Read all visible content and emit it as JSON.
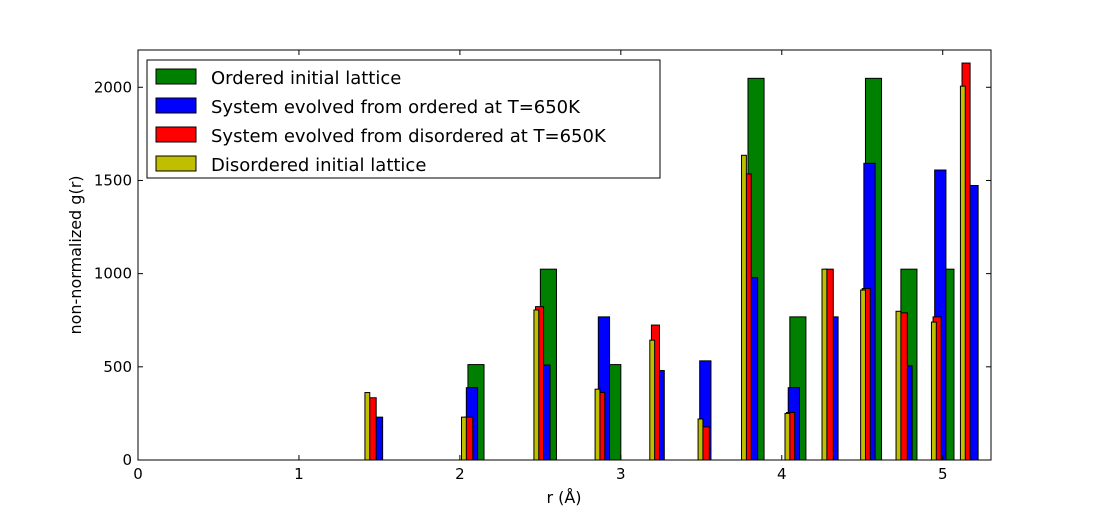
{
  "chart_data": {
    "type": "bar",
    "xlabel": "r (Å)",
    "ylabel": "non-normalized g(r)",
    "xlim": [
      0,
      5.3
    ],
    "ylim": [
      0,
      2200
    ],
    "xticks": [
      "0",
      "1",
      "2",
      "3",
      "4",
      "5"
    ],
    "yticks": [
      "0",
      "500",
      "1000",
      "1500",
      "2000"
    ],
    "grid": false,
    "legend_position": "top-left",
    "series": [
      {
        "name": "Ordered initial lattice",
        "color": "#008000",
        "bar_width": 0.1,
        "points": [
          {
            "x": 2.05,
            "y": 512
          },
          {
            "x": 2.5,
            "y": 1024
          },
          {
            "x": 2.9,
            "y": 512
          },
          {
            "x": 3.79,
            "y": 2048
          },
          {
            "x": 4.05,
            "y": 768
          },
          {
            "x": 4.52,
            "y": 2048
          },
          {
            "x": 4.74,
            "y": 1024
          },
          {
            "x": 4.97,
            "y": 1024
          }
        ]
      },
      {
        "name": "System evolved from ordered at T=650K",
        "color": "#0000ff",
        "bar_width": 0.07,
        "points": [
          {
            "x": 1.45,
            "y": 230
          },
          {
            "x": 2.04,
            "y": 388
          },
          {
            "x": 2.49,
            "y": 510
          },
          {
            "x": 2.86,
            "y": 768
          },
          {
            "x": 3.2,
            "y": 480
          },
          {
            "x": 3.49,
            "y": 532
          },
          {
            "x": 3.78,
            "y": 978
          },
          {
            "x": 4.04,
            "y": 388
          },
          {
            "x": 4.28,
            "y": 768
          },
          {
            "x": 4.51,
            "y": 1592
          },
          {
            "x": 4.74,
            "y": 505
          },
          {
            "x": 4.95,
            "y": 1556
          },
          {
            "x": 5.15,
            "y": 1473
          }
        ]
      },
      {
        "name": "System evolved from disordered at T=650K",
        "color": "#ff0000",
        "bar_width": 0.05,
        "points": [
          {
            "x": 1.43,
            "y": 334
          },
          {
            "x": 2.03,
            "y": 230
          },
          {
            "x": 2.47,
            "y": 823
          },
          {
            "x": 2.85,
            "y": 362
          },
          {
            "x": 3.19,
            "y": 724
          },
          {
            "x": 3.5,
            "y": 178
          },
          {
            "x": 3.76,
            "y": 1535
          },
          {
            "x": 4.03,
            "y": 255
          },
          {
            "x": 4.27,
            "y": 1024
          },
          {
            "x": 4.5,
            "y": 920
          },
          {
            "x": 4.73,
            "y": 790
          },
          {
            "x": 4.94,
            "y": 768
          },
          {
            "x": 5.12,
            "y": 2130
          }
        ]
      },
      {
        "name": "Disordered initial lattice",
        "color": "#bfbf00",
        "bar_width": 0.03,
        "points": [
          {
            "x": 1.41,
            "y": 362
          },
          {
            "x": 2.01,
            "y": 230
          },
          {
            "x": 2.46,
            "y": 805
          },
          {
            "x": 2.84,
            "y": 380
          },
          {
            "x": 3.18,
            "y": 643
          },
          {
            "x": 3.48,
            "y": 220
          },
          {
            "x": 3.75,
            "y": 1635
          },
          {
            "x": 4.02,
            "y": 250
          },
          {
            "x": 4.25,
            "y": 1024
          },
          {
            "x": 4.49,
            "y": 912
          },
          {
            "x": 4.71,
            "y": 798
          },
          {
            "x": 4.93,
            "y": 740
          },
          {
            "x": 5.11,
            "y": 2006
          }
        ]
      }
    ]
  }
}
